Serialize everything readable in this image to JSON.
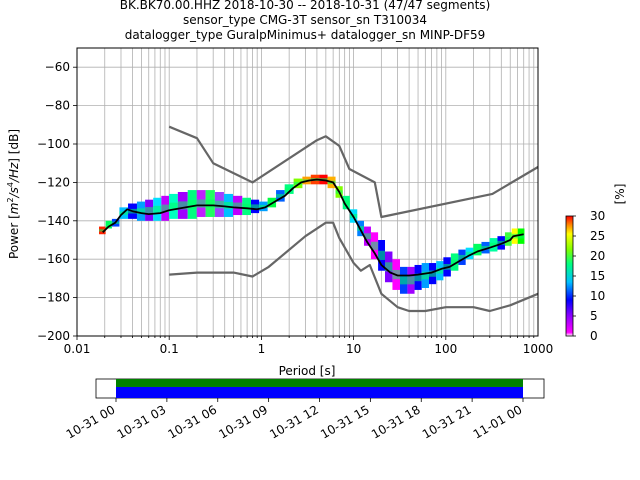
{
  "chart_data": {
    "type": "line",
    "title_lines": [
      "BK.BK70.00.HHZ   2018-10-30 -- 2018-10-31  (47/47 segments)",
      "sensor_type CMG-3T sensor_sn T310034",
      "datalogger_type GuralpMinimus+ datalogger_sn MINP-DF59"
    ],
    "xlabel": "Period [s]",
    "ylabel_main": "Power [",
    "ylabel_unit_m": "m",
    "ylabel_unit_exp": "2",
    "ylabel_unit_s": "/s",
    "ylabel_unit_exp2": "4",
    "ylabel_unit_hz": "/Hz",
    "ylabel_tail": "] [dB]",
    "x_scale": "log",
    "xlim": [
      0.01,
      1000
    ],
    "ylim": [
      -200,
      -50
    ],
    "x_ticks": [
      0.01,
      0.1,
      1,
      10,
      100,
      1000
    ],
    "x_tick_labels": [
      "0.01",
      "0.1",
      "1",
      "10",
      "100",
      "1000"
    ],
    "y_ticks": [
      -200,
      -180,
      -160,
      -140,
      -120,
      -100,
      -80,
      -60
    ],
    "y_tick_labels": [
      "−200",
      "−180",
      "−160",
      "−140",
      "−120",
      "−100",
      "−80",
      "−60"
    ],
    "grid": true,
    "colorbar": {
      "label": "[%]",
      "range": [
        0,
        30
      ],
      "ticks": [
        0,
        5,
        10,
        15,
        20,
        25,
        30
      ],
      "tick_labels": [
        "0",
        "5",
        "10",
        "15",
        "20",
        "25",
        "30"
      ]
    },
    "series": [
      {
        "color": "#000000",
        "points": [
          [
            0.019,
            -146
          ],
          [
            0.022,
            -143
          ],
          [
            0.026,
            -141
          ],
          [
            0.03,
            -137
          ],
          [
            0.035,
            -134
          ],
          [
            0.04,
            -135
          ],
          [
            0.05,
            -136
          ],
          [
            0.06,
            -136.5
          ],
          [
            0.08,
            -136
          ],
          [
            0.1,
            -134.5
          ],
          [
            0.15,
            -133
          ],
          [
            0.2,
            -132
          ],
          [
            0.3,
            -132
          ],
          [
            0.4,
            -132.5
          ],
          [
            0.5,
            -133
          ],
          [
            0.7,
            -133.5
          ],
          [
            0.9,
            -134
          ],
          [
            1.1,
            -133
          ],
          [
            1.4,
            -130
          ],
          [
            1.8,
            -127
          ],
          [
            2.2,
            -123
          ],
          [
            2.7,
            -120
          ],
          [
            3.3,
            -119
          ],
          [
            4,
            -118.5
          ],
          [
            5,
            -119
          ],
          [
            6,
            -120
          ],
          [
            7,
            -125
          ],
          [
            8,
            -131
          ],
          [
            10,
            -138
          ],
          [
            12,
            -145
          ],
          [
            14,
            -151
          ],
          [
            17,
            -157
          ],
          [
            20,
            -163
          ],
          [
            25,
            -167
          ],
          [
            30,
            -168.5
          ],
          [
            40,
            -168.5
          ],
          [
            50,
            -168
          ],
          [
            70,
            -167
          ],
          [
            90,
            -165
          ],
          [
            110,
            -164
          ],
          [
            140,
            -161
          ],
          [
            180,
            -158
          ],
          [
            220,
            -156
          ],
          [
            300,
            -154
          ],
          [
            400,
            -152
          ],
          [
            500,
            -150
          ],
          [
            540,
            -148
          ],
          [
            700,
            -147
          ]
        ]
      },
      {
        "color": "#666666",
        "points": [
          [
            0.1,
            -91
          ],
          [
            0.2,
            -97
          ],
          [
            0.3,
            -110
          ],
          [
            0.8,
            -120
          ],
          [
            4,
            -98
          ],
          [
            5,
            -96
          ],
          [
            7,
            -101
          ],
          [
            9,
            -113
          ],
          [
            17,
            -120
          ],
          [
            20,
            -138
          ],
          [
            320,
            -126
          ],
          [
            1000,
            -112
          ]
        ]
      },
      {
        "color": "#666666",
        "points": [
          [
            0.1,
            -168
          ],
          [
            0.2,
            -167
          ],
          [
            0.5,
            -167
          ],
          [
            0.8,
            -169
          ],
          [
            1.2,
            -164
          ],
          [
            3,
            -148
          ],
          [
            5,
            -141
          ],
          [
            6,
            -141
          ],
          [
            7,
            -149
          ],
          [
            10,
            -162
          ],
          [
            12,
            -166
          ],
          [
            15,
            -163
          ],
          [
            20,
            -178
          ],
          [
            30,
            -185
          ],
          [
            40,
            -187
          ],
          [
            60,
            -187
          ],
          [
            100,
            -185
          ],
          [
            150,
            -185
          ],
          [
            200,
            -185
          ],
          [
            300,
            -187
          ],
          [
            500,
            -184
          ],
          [
            1000,
            -178
          ]
        ]
      }
    ],
    "psd_density": [
      {
        "p": 0.019,
        "lo": -147,
        "hi": -143,
        "c": "#ff2200"
      },
      {
        "p": 0.022,
        "lo": -144,
        "hi": -140,
        "c": "#00ff60"
      },
      {
        "p": 0.026,
        "lo": -143,
        "hi": -139,
        "c": "#0044ff"
      },
      {
        "p": 0.032,
        "lo": -139,
        "hi": -133,
        "c": "#00c0ff"
      },
      {
        "p": 0.04,
        "lo": -139,
        "hi": -131,
        "c": "#0000ff"
      },
      {
        "p": 0.05,
        "lo": -140,
        "hi": -130,
        "c": "#00a0ff"
      },
      {
        "p": 0.06,
        "lo": -140,
        "hi": -129,
        "c": "#8000ff"
      },
      {
        "p": 0.075,
        "lo": -140,
        "hi": -128,
        "c": "#00e0ff"
      },
      {
        "p": 0.09,
        "lo": -140,
        "hi": -127,
        "c": "#c000ff"
      },
      {
        "p": 0.11,
        "lo": -139,
        "hi": -126,
        "c": "#00ffc0"
      },
      {
        "p": 0.14,
        "lo": -139,
        "hi": -125,
        "c": "#a000ff"
      },
      {
        "p": 0.18,
        "lo": -139,
        "hi": -124,
        "c": "#00ff80"
      },
      {
        "p": 0.22,
        "lo": -138,
        "hi": -124,
        "c": "#c020ff"
      },
      {
        "p": 0.28,
        "lo": -138,
        "hi": -124,
        "c": "#20ff60"
      },
      {
        "p": 0.35,
        "lo": -138,
        "hi": -125,
        "c": "#a040ff"
      },
      {
        "p": 0.44,
        "lo": -138,
        "hi": -126,
        "c": "#00c0ff"
      },
      {
        "p": 0.55,
        "lo": -137,
        "hi": -127,
        "c": "#c000ff"
      },
      {
        "p": 0.7,
        "lo": -137,
        "hi": -128,
        "c": "#00ff80"
      },
      {
        "p": 0.85,
        "lo": -136,
        "hi": -129,
        "c": "#0000ff"
      },
      {
        "p": 1.05,
        "lo": -135,
        "hi": -130,
        "c": "#00a0ff"
      },
      {
        "p": 1.3,
        "lo": -133,
        "hi": -128,
        "c": "#00ff40"
      },
      {
        "p": 1.6,
        "lo": -130,
        "hi": -124,
        "c": "#0060ff"
      },
      {
        "p": 2.0,
        "lo": -126,
        "hi": -121,
        "c": "#00ff80"
      },
      {
        "p": 2.5,
        "lo": -123,
        "hi": -118,
        "c": "#80ff00"
      },
      {
        "p": 3.1,
        "lo": -121,
        "hi": -117,
        "c": "#ffa000"
      },
      {
        "p": 3.8,
        "lo": -121,
        "hi": -116,
        "c": "#ff4000"
      },
      {
        "p": 4.7,
        "lo": -121,
        "hi": -116,
        "c": "#ff0000"
      },
      {
        "p": 5.8,
        "lo": -123,
        "hi": -117,
        "c": "#ffb000"
      },
      {
        "p": 7.0,
        "lo": -128,
        "hi": -122,
        "c": "#80ff00"
      },
      {
        "p": 8.3,
        "lo": -134,
        "hi": -127,
        "c": "#00ff80"
      },
      {
        "p": 10,
        "lo": -141,
        "hi": -134,
        "c": "#00e0ff"
      },
      {
        "p": 12,
        "lo": -148,
        "hi": -140,
        "c": "#0080ff"
      },
      {
        "p": 14,
        "lo": -153,
        "hi": -143,
        "c": "#c000ff"
      },
      {
        "p": 17,
        "lo": -160,
        "hi": -146,
        "c": "#ff00ff"
      },
      {
        "p": 20,
        "lo": -166,
        "hi": -150,
        "c": "#0000ff"
      },
      {
        "p": 24,
        "lo": -172,
        "hi": -156,
        "c": "#8000ff"
      },
      {
        "p": 29,
        "lo": -176,
        "hi": -160,
        "c": "#ff00ff"
      },
      {
        "p": 35,
        "lo": -178,
        "hi": -164,
        "c": "#0040ff"
      },
      {
        "p": 42,
        "lo": -178,
        "hi": -164,
        "c": "#a000ff"
      },
      {
        "p": 50,
        "lo": -176,
        "hi": -163,
        "c": "#0000ff"
      },
      {
        "p": 60,
        "lo": -175,
        "hi": -162,
        "c": "#00a0ff"
      },
      {
        "p": 72,
        "lo": -173,
        "hi": -162,
        "c": "#0000ff"
      },
      {
        "p": 86,
        "lo": -171,
        "hi": -161,
        "c": "#00c0ff"
      },
      {
        "p": 103,
        "lo": -169,
        "hi": -159,
        "c": "#0000ff"
      },
      {
        "p": 125,
        "lo": -166,
        "hi": -157,
        "c": "#00ff80"
      },
      {
        "p": 150,
        "lo": -163,
        "hi": -155,
        "c": "#0040ff"
      },
      {
        "p": 180,
        "lo": -160,
        "hi": -154,
        "c": "#00e0ff"
      },
      {
        "p": 220,
        "lo": -158,
        "hi": -152,
        "c": "#00ff60"
      },
      {
        "p": 270,
        "lo": -157,
        "hi": -151,
        "c": "#0060ff"
      },
      {
        "p": 330,
        "lo": -156,
        "hi": -149,
        "c": "#00ffa0"
      },
      {
        "p": 400,
        "lo": -155,
        "hi": -148,
        "c": "#0000ff"
      },
      {
        "p": 480,
        "lo": -153,
        "hi": -146,
        "c": "#40ff40"
      },
      {
        "p": 560,
        "lo": -152,
        "hi": -144,
        "c": "#ffff00"
      },
      {
        "p": 650,
        "lo": -152,
        "hi": -144,
        "c": "#00ff00"
      }
    ],
    "timeline": {
      "tick_labels": [
        "10-31 00",
        "10-31 03",
        "10-31 06",
        "10-31 09",
        "10-31 12",
        "10-31 15",
        "10-31 18",
        "10-31 21",
        "11-01 00"
      ],
      "data_start_fraction": 0.0,
      "data_end_fraction": 1.0,
      "bar_colors": [
        "#008000",
        "#0000ff"
      ]
    }
  }
}
